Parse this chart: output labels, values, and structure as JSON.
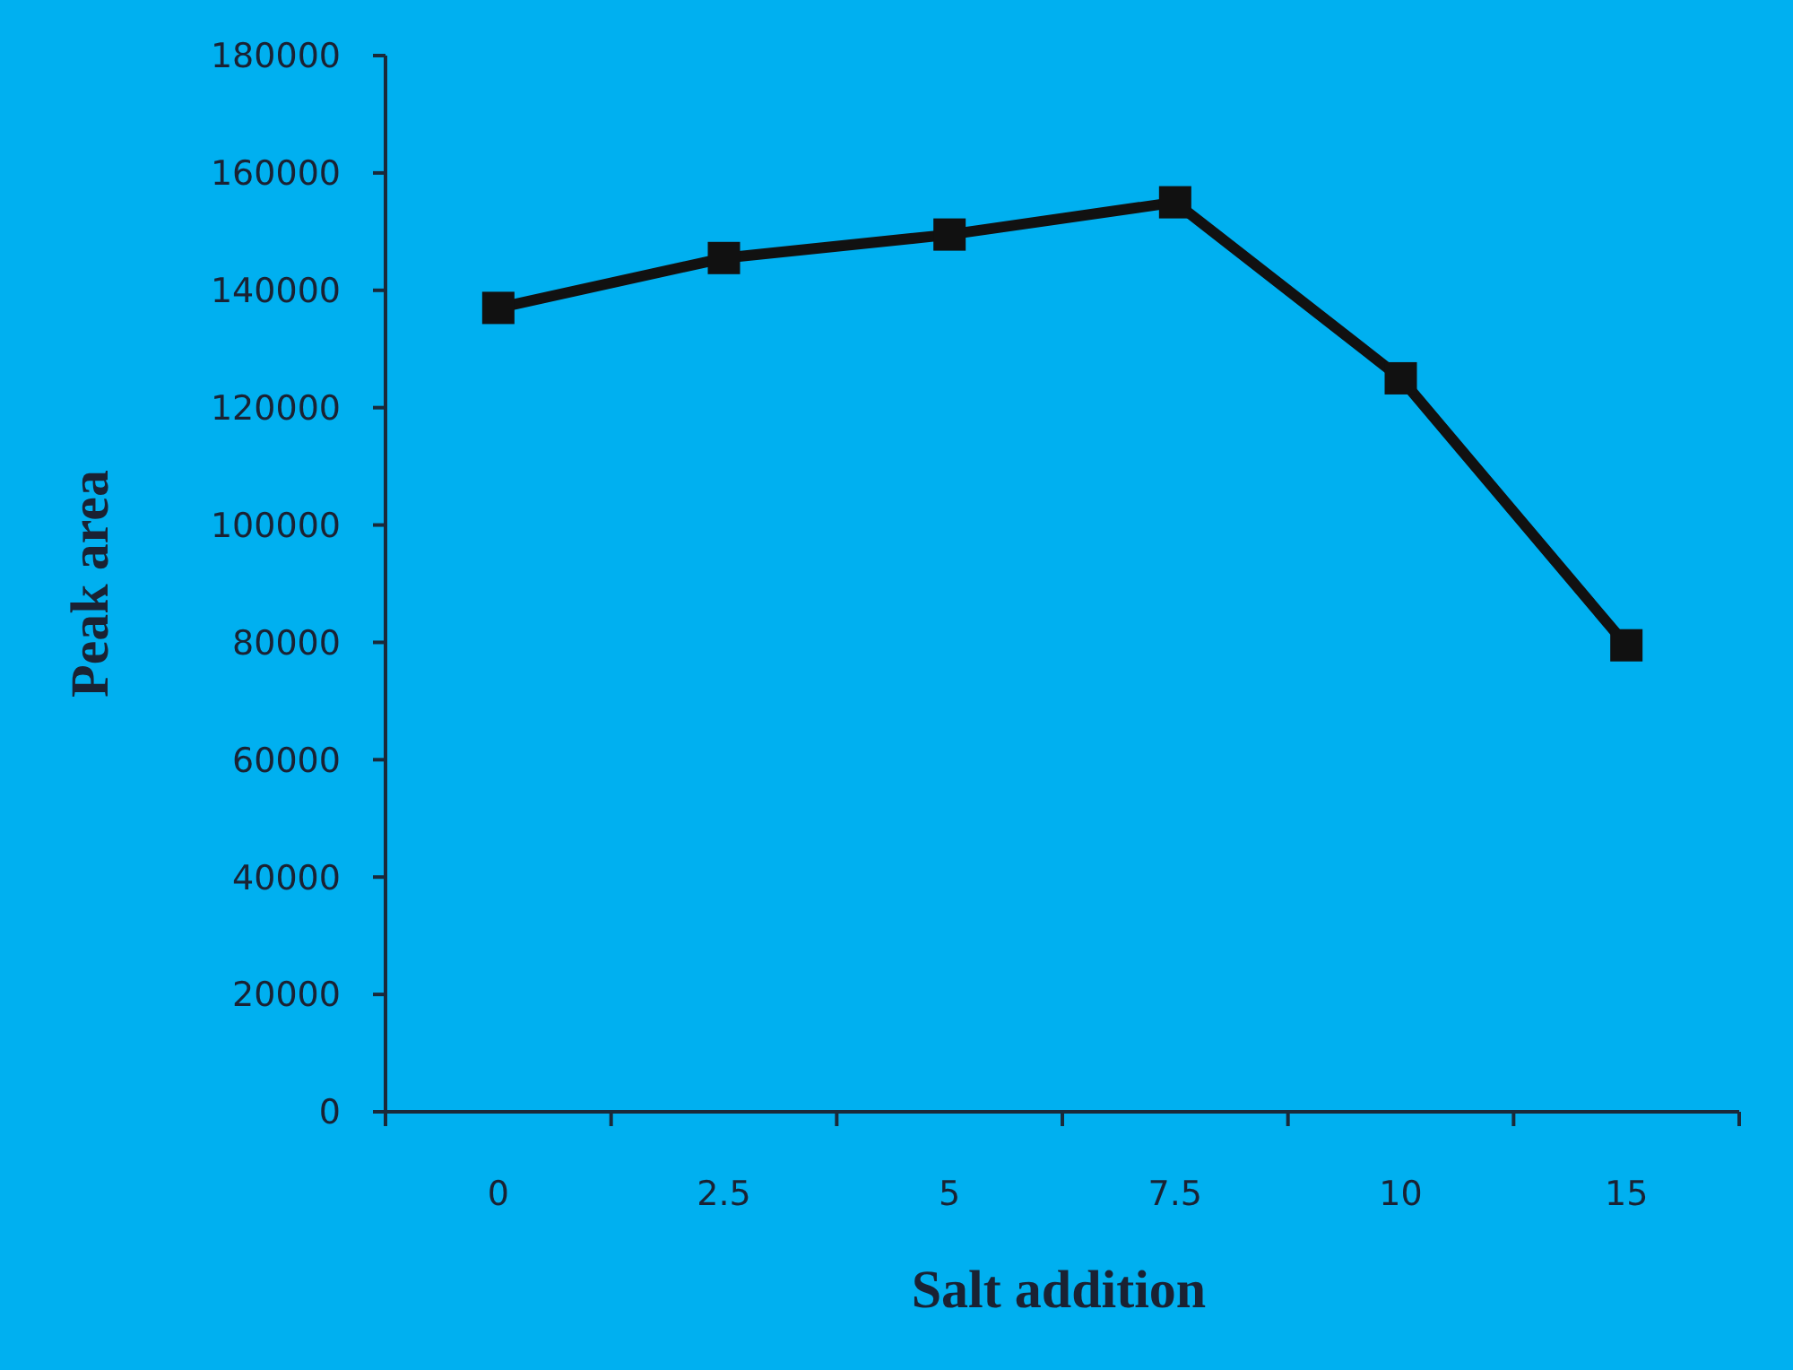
{
  "chart_data": {
    "type": "line",
    "xlabel": "Salt addition",
    "ylabel": "Peak area",
    "categories": [
      "0",
      "2.5",
      "5",
      "7.5",
      "10",
      "15"
    ],
    "series": [
      {
        "color": "#111111",
        "values": [
          137000,
          145500,
          149500,
          155000,
          125000,
          79500
        ]
      }
    ],
    "ylim": [
      0,
      180000
    ],
    "yticks": [
      0,
      20000,
      40000,
      60000,
      80000,
      100000,
      120000,
      140000,
      160000,
      180000
    ],
    "marker": "square",
    "line_style": "solid"
  }
}
